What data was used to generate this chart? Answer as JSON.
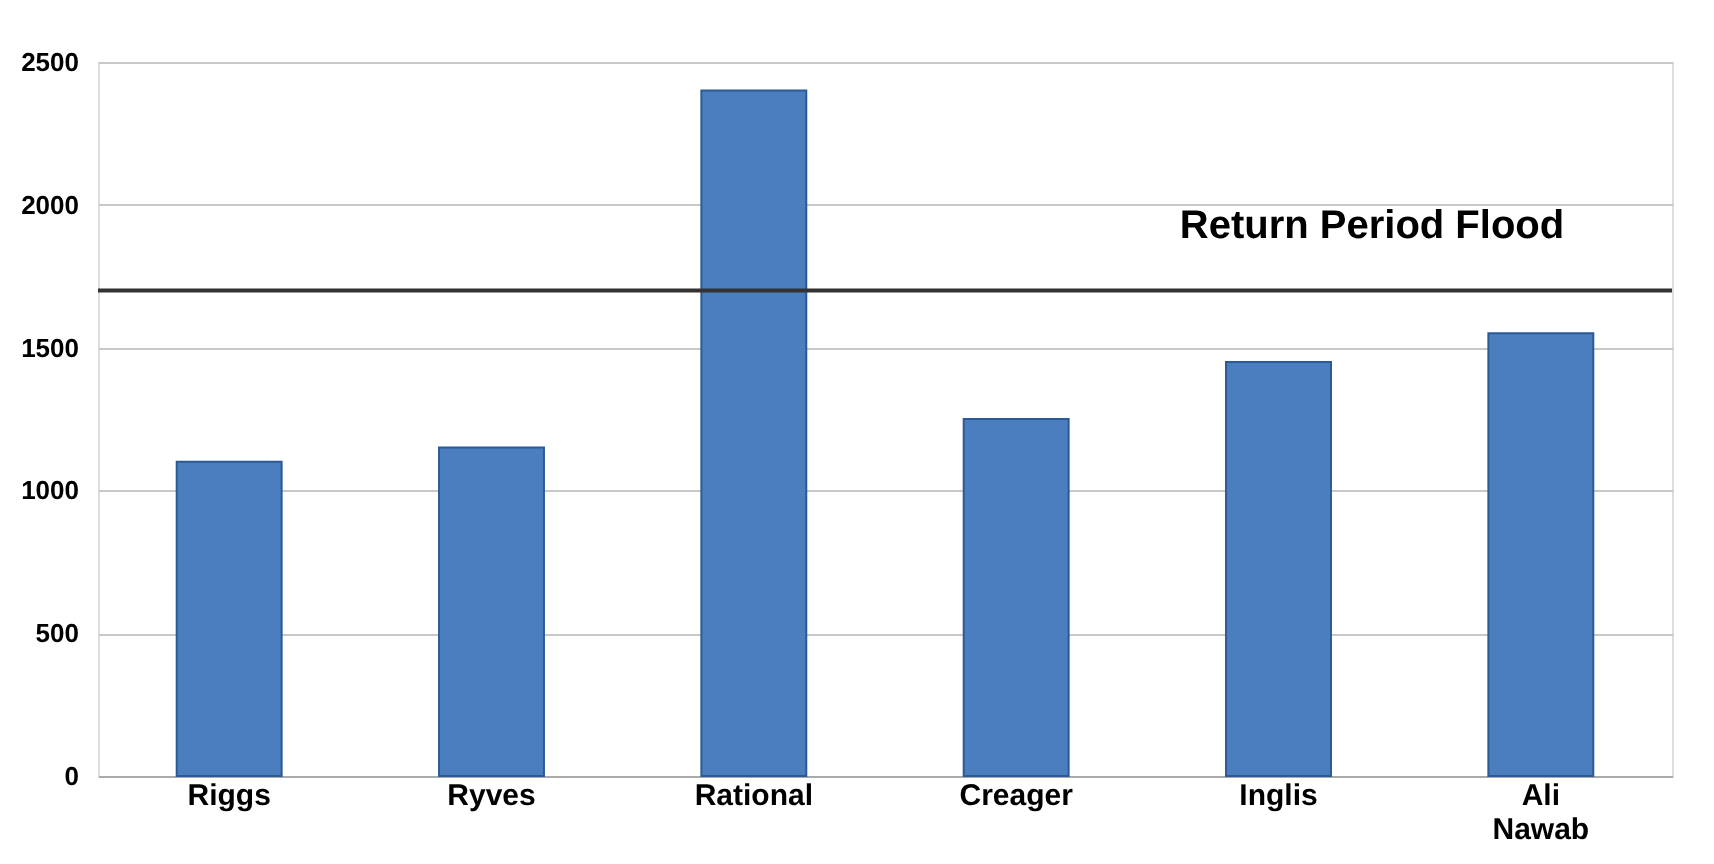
{
  "chart_data": {
    "type": "bar",
    "categories": [
      "Riggs",
      "Ryves",
      "Rational",
      "Creager",
      "Inglis",
      "Ali Nawab"
    ],
    "values": [
      1100,
      1150,
      2400,
      1250,
      1450,
      1550
    ],
    "color": "#4a7ebf",
    "ylim": [
      0,
      2500
    ],
    "yticks": [
      0,
      500,
      1000,
      1500,
      2000,
      2500
    ],
    "grid": "y",
    "ref_lines": [
      {
        "axis": "y",
        "value": 1700,
        "label": "Return Period Flood",
        "color": "#333333"
      }
    ]
  }
}
